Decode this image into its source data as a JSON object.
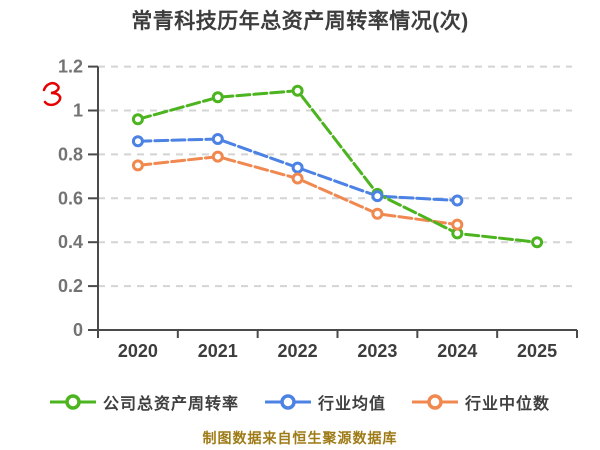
{
  "chart_data": {
    "type": "line",
    "title": "常青科技历年总资产周转率情况(次)",
    "categories": [
      "2020",
      "2021",
      "2022",
      "2023",
      "2024",
      "2025"
    ],
    "series": [
      {
        "name": "公司总资产周转率",
        "color": "#4cb41e",
        "values": [
          0.96,
          1.06,
          1.09,
          0.62,
          0.44,
          0.4
        ]
      },
      {
        "name": "行业均值",
        "color": "#4b82e4",
        "values": [
          0.86,
          0.87,
          0.74,
          0.61,
          0.59,
          null
        ]
      },
      {
        "name": "行业中位数",
        "color": "#f08850",
        "values": [
          0.75,
          0.79,
          0.69,
          0.53,
          0.48,
          null
        ]
      }
    ],
    "xlabel": "",
    "ylabel": "",
    "ylim": [
      0,
      1.2
    ],
    "ytick_labels": [
      "0",
      "0.2",
      "0.4",
      "0.6",
      "0.8",
      "1",
      "1.2"
    ],
    "grid": "horizontal-dashed",
    "line_style": "long-dash",
    "marker": "white-centered-circle",
    "legend_position": "bottom"
  },
  "footer": {
    "text": "制图数据来自恒生聚源数据库",
    "color": "#9e7b17"
  },
  "annotation": {
    "description": "red handwritten scribble left of y-axis",
    "color": "#e60000"
  },
  "colors": {
    "background": "#ffffff",
    "title_text": "#3d3d3d",
    "x_tick_text": "#3d3d3d",
    "y_tick_text": "#737373",
    "gridline": "#d4d4d4",
    "axis_line": "#4a4a4a",
    "marker_fill": "#ffffff"
  }
}
